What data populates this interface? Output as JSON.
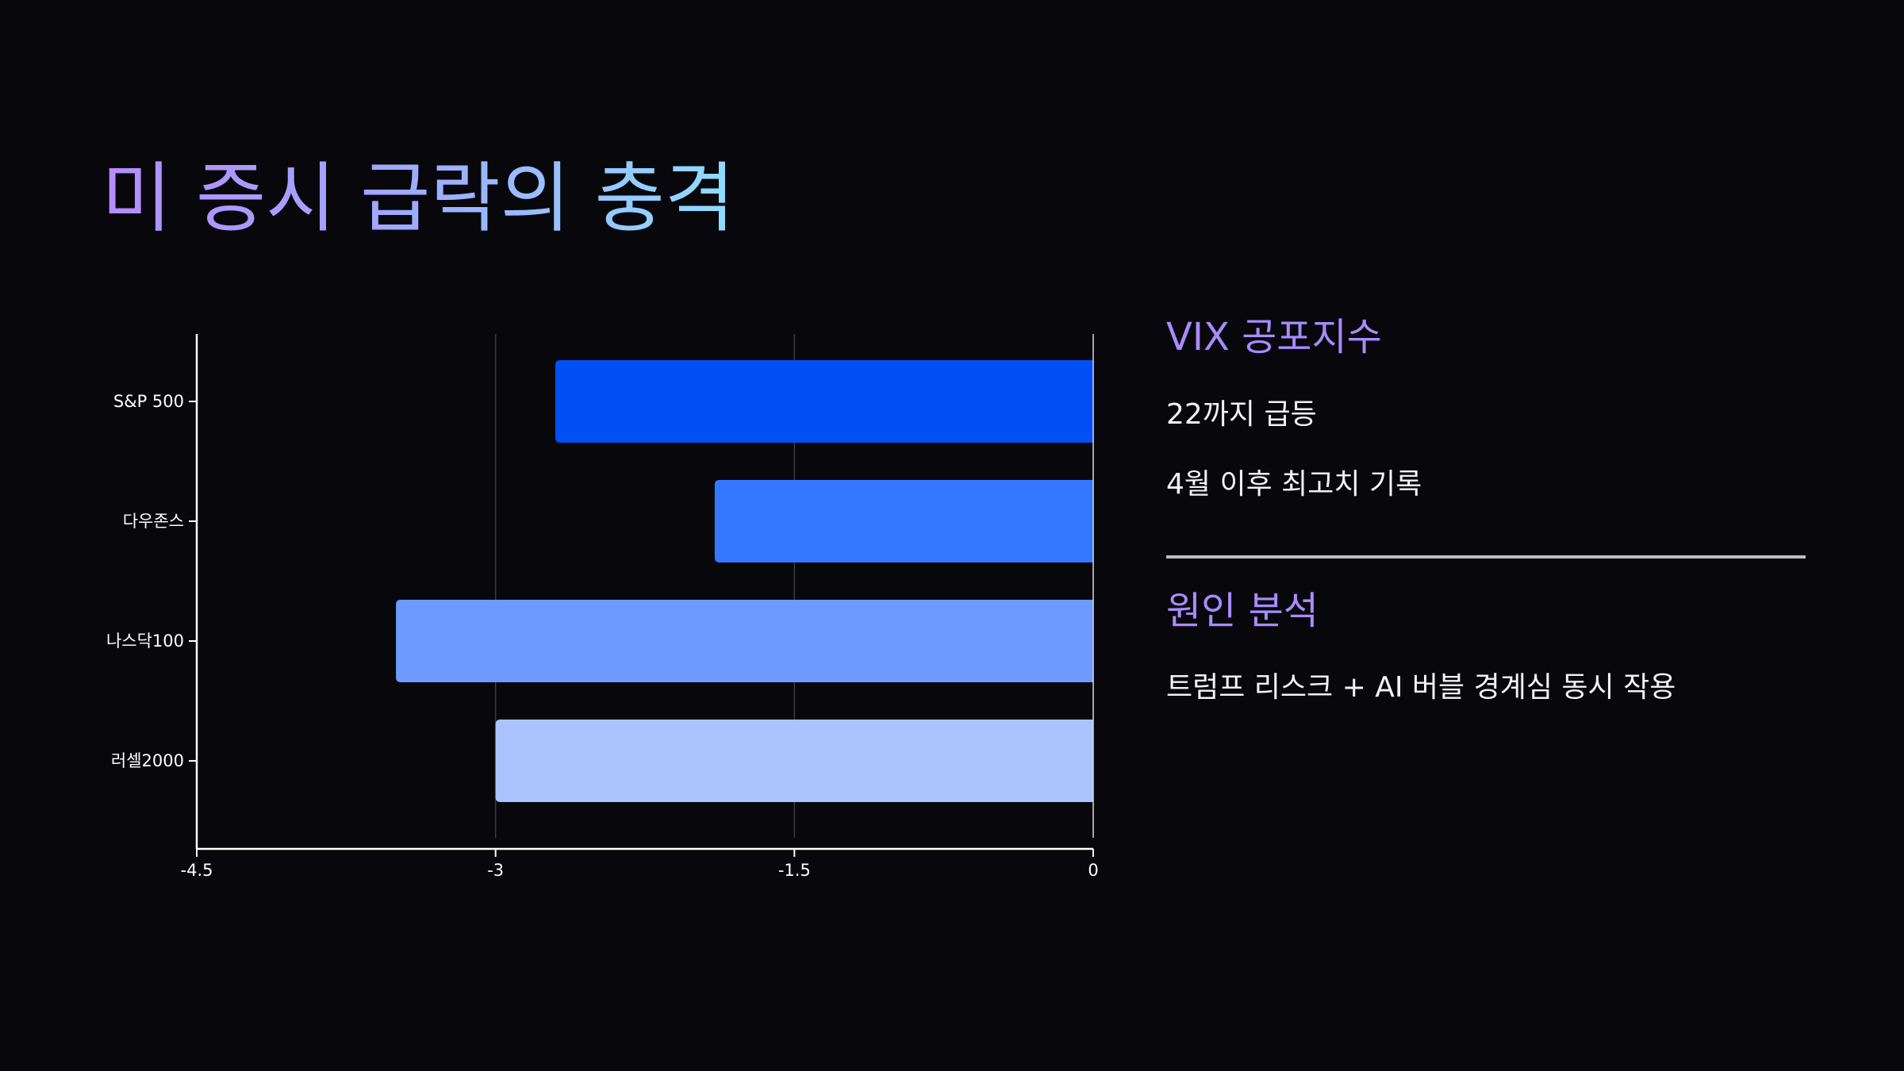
{
  "slide": {
    "title": "미 증시 급락의 충격"
  },
  "side_panel": {
    "vix_heading": "VIX 공포지수",
    "vix_line1": "22까지 급등",
    "vix_line2": "4월 이후 최고치 기록",
    "cause_heading": "원인 분석",
    "cause_line1": "트럼프 리스크 + AI 버블 경계심 동시 작용"
  },
  "colors": {
    "background": "#08080c",
    "title_gradient": [
      "#b68cff",
      "#9fa8ff",
      "#8fdcff"
    ],
    "heading": "#a98bff",
    "bars": [
      "#0050f5",
      "#3378ff",
      "#6d9bff",
      "#aac4ff"
    ]
  },
  "chart_data": {
    "type": "bar",
    "orientation": "horizontal",
    "categories": [
      "S&P 500",
      "다우존스",
      "나스닥100",
      "러셀2000"
    ],
    "values": [
      -2.7,
      -1.9,
      -3.5,
      -3.0
    ],
    "xlim": [
      -4.5,
      0
    ],
    "xticks": [
      "-4.5",
      "-3",
      "-1.5",
      "0"
    ],
    "xtick_values": [
      -4.5,
      -3,
      -1.5,
      0
    ],
    "title": "",
    "xlabel": "",
    "ylabel": "",
    "grid": "vertical",
    "legend": "none"
  }
}
